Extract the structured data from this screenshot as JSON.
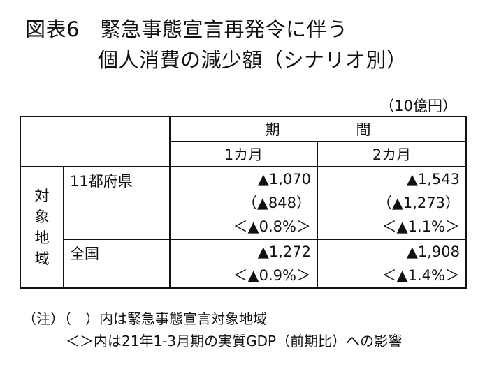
{
  "title": {
    "line1": "図表6　緊急事態宣言再発令に伴う",
    "line2": "個人消費の減少額（シナリオ別）"
  },
  "unit": "（10億円）",
  "table": {
    "period_header": "期　間",
    "col1_header": "1カ月",
    "col2_header": "2カ月",
    "target_label": [
      "対",
      "象",
      "地",
      "域"
    ],
    "rows": [
      {
        "region": "11都府県",
        "col1": [
          "▲1,070",
          "（▲848）",
          "＜▲0.8%＞"
        ],
        "col2": [
          "▲1,543",
          "（▲1,273）",
          "＜▲1.1%＞"
        ]
      },
      {
        "region": "全国",
        "col1": [
          "▲1,272",
          "＜▲0.9%＞"
        ],
        "col2": [
          "▲1,908",
          "＜▲1.4%＞"
        ]
      }
    ]
  },
  "notes": {
    "line1": "（注）（　）内は緊急事態宣言対象地域",
    "line2": "＜＞内は21年1-3月期の実質GDP（前期比）への影響"
  }
}
